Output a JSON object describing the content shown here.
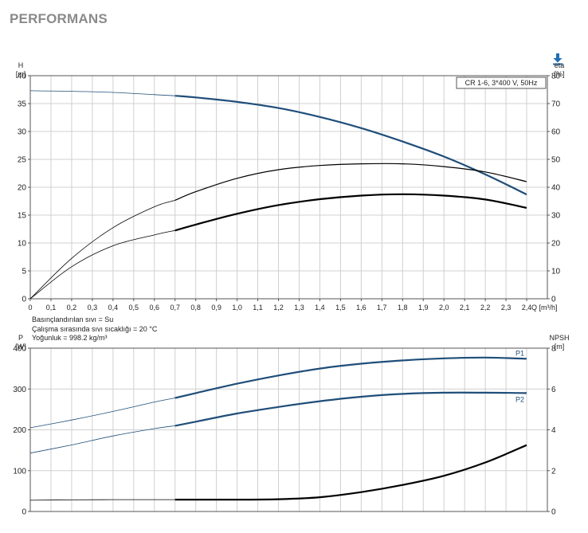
{
  "page_title": "PERFORMANS",
  "download_icon": "download-icon",
  "notes": [
    "Basınçlandırılan sıvı = Su",
    "Çalışma sırasında sıvı sıcaklığı = 20 °C",
    "Yoğunluk = 998.2 kg/m³"
  ],
  "colors": {
    "accent": "#1f4e79",
    "black": "#000000",
    "grid": "#cfcfcf"
  },
  "chart_data": [
    {
      "type": "line",
      "legend_box": "CR 1-6, 3*400 V, 50Hz",
      "xlabel": "Q [m³/h]",
      "ylabel_left": [
        "H",
        "[m]"
      ],
      "ylabel_right": [
        "eta",
        "[%]"
      ],
      "xlim": [
        0,
        2.5
      ],
      "ylim_left": [
        0,
        40
      ],
      "ylim_right": [
        0,
        80
      ],
      "x_ticks": [
        "0",
        "0,1",
        "0,2",
        "0,3",
        "0,4",
        "0,5",
        "0,6",
        "0,7",
        "0,8",
        "0,9",
        "1,0",
        "1,1",
        "1,2",
        "1,3",
        "1,4",
        "1,5",
        "1,6",
        "1,7",
        "1,8",
        "1,9",
        "2,0",
        "2,1",
        "2,2",
        "2,3",
        "2,4"
      ],
      "y_ticks_left": [
        0,
        5,
        10,
        15,
        20,
        25,
        30,
        35,
        40
      ],
      "y_ticks_right": [
        0,
        10,
        20,
        30,
        40,
        50,
        60,
        70,
        80
      ],
      "grid": true,
      "series": [
        {
          "axis": "left",
          "color": "#1f4e79",
          "x": [
            0,
            0.2,
            0.4,
            0.6,
            0.7,
            0.8,
            1.0,
            1.2,
            1.4,
            1.6,
            1.8,
            2.0,
            2.2,
            2.4
          ],
          "y": [
            37.3,
            37.2,
            37.0,
            36.6,
            36.4,
            36.1,
            35.3,
            34.2,
            32.6,
            30.6,
            28.2,
            25.5,
            22.3,
            18.7
          ]
        },
        {
          "axis": "right",
          "color": "#000000",
          "x": [
            0,
            0.2,
            0.4,
            0.6,
            0.7,
            0.8,
            1.0,
            1.2,
            1.4,
            1.6,
            1.8,
            2.0,
            2.2,
            2.4
          ],
          "y": [
            0,
            14.5,
            25.5,
            33.0,
            35.3,
            38.4,
            43.2,
            46.3,
            47.8,
            48.4,
            48.4,
            47.4,
            45.5,
            42.0
          ]
        },
        {
          "axis": "right",
          "color": "#000000",
          "x": [
            0,
            0.2,
            0.4,
            0.6,
            0.7,
            0.8,
            1.0,
            1.2,
            1.4,
            1.6,
            1.8,
            2.0,
            2.2,
            2.4
          ],
          "y": [
            0,
            11.5,
            19.0,
            22.9,
            24.5,
            26.6,
            30.5,
            33.6,
            35.7,
            37.0,
            37.5,
            37.0,
            35.6,
            32.6
          ]
        }
      ]
    },
    {
      "type": "line",
      "ylabel_left": [
        "P",
        "[W]"
      ],
      "ylabel_right": [
        "NPSH",
        "[m]"
      ],
      "xlim": [
        0,
        2.5
      ],
      "ylim_left": [
        0,
        400
      ],
      "ylim_right": [
        0,
        8
      ],
      "y_ticks_left": [
        0,
        100,
        200,
        300,
        400
      ],
      "y_ticks_right": [
        0,
        2,
        4,
        6,
        8
      ],
      "grid": true,
      "series": [
        {
          "name": "P1",
          "axis": "left",
          "color": "#1f4e79",
          "x": [
            0,
            0.2,
            0.4,
            0.6,
            0.7,
            0.8,
            1.0,
            1.2,
            1.4,
            1.6,
            1.8,
            2.0,
            2.2,
            2.4
          ],
          "y": [
            205,
            224,
            245,
            268,
            278,
            290,
            313,
            333,
            350,
            362,
            370,
            375,
            377,
            374
          ]
        },
        {
          "name": "P2",
          "axis": "left",
          "color": "#1f4e79",
          "x": [
            0,
            0.2,
            0.4,
            0.6,
            0.7,
            0.8,
            1.0,
            1.2,
            1.4,
            1.6,
            1.8,
            2.0,
            2.2,
            2.4
          ],
          "y": [
            143,
            163,
            185,
            203,
            210,
            220,
            240,
            256,
            270,
            281,
            288,
            291,
            291,
            290
          ]
        },
        {
          "axis": "right",
          "color": "#000000",
          "x": [
            0,
            0.2,
            0.4,
            0.6,
            0.7,
            0.8,
            1.0,
            1.2,
            1.4,
            1.6,
            1.8,
            2.0,
            2.2,
            2.4
          ],
          "y": [
            0.55,
            0.57,
            0.58,
            0.58,
            0.58,
            0.58,
            0.58,
            0.6,
            0.7,
            0.95,
            1.3,
            1.75,
            2.4,
            3.25
          ]
        }
      ]
    }
  ]
}
